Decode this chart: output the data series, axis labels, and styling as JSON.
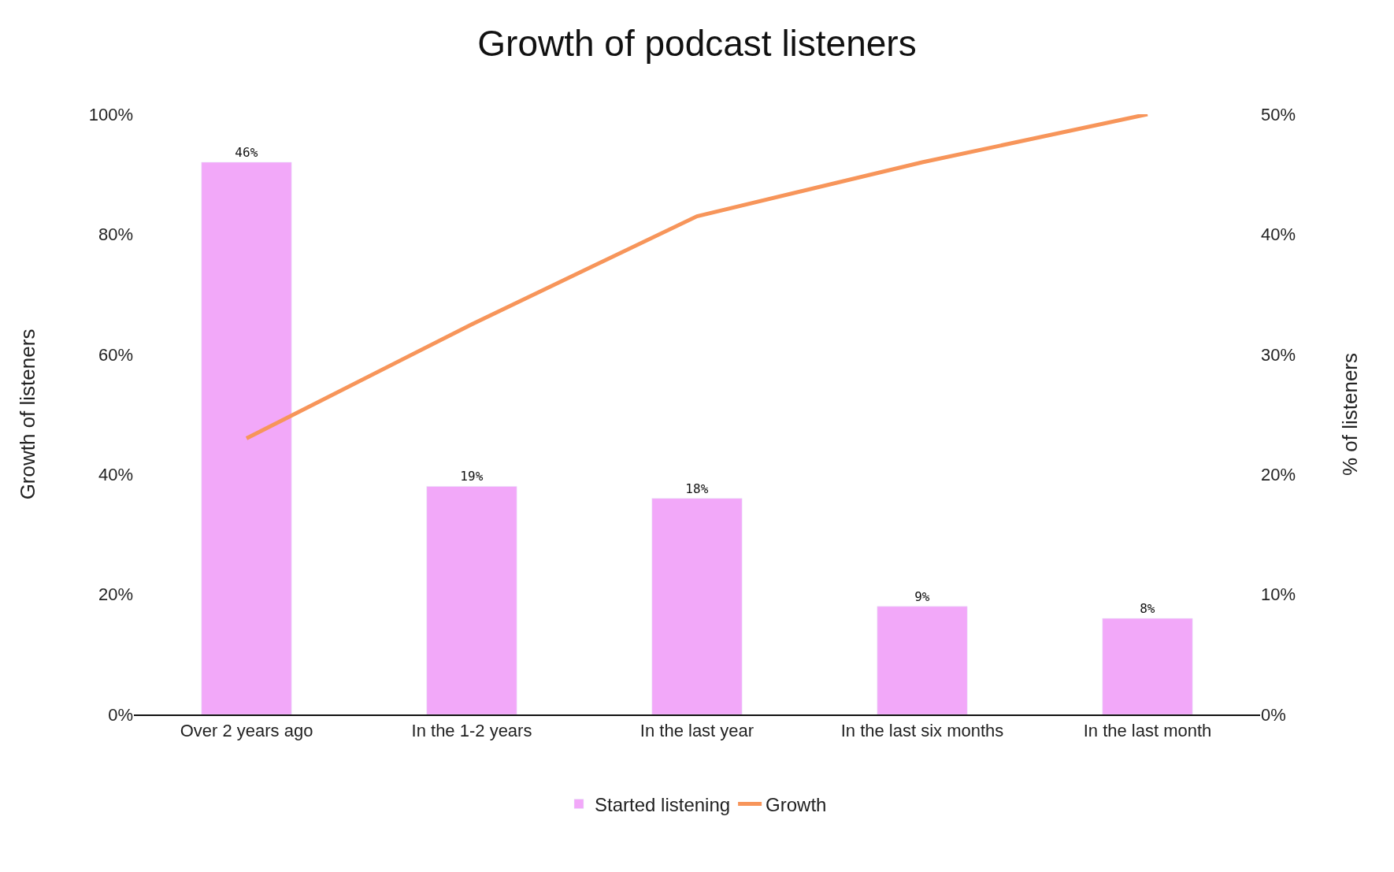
{
  "chart_data": {
    "type": "bar",
    "title": "Growth of podcast listeners",
    "ylabel": "Growth of listeners",
    "y2label": "% of listeners",
    "categories": [
      "Over 2 years ago",
      "In the 1-2 years",
      "In the last year",
      "In the last six months",
      "In the last month"
    ],
    "series": [
      {
        "name": "Started listening",
        "axis": "y2",
        "color": "#f2a8f9",
        "values": [
          46,
          19,
          18,
          9,
          8
        ],
        "value_labels": [
          "46%",
          "19%",
          "18%",
          "9%",
          "8%"
        ]
      },
      {
        "name": "Growth",
        "type": "line",
        "axis": "y",
        "color": "#f7955a",
        "values": [
          46,
          65,
          83,
          92,
          100
        ]
      }
    ],
    "ylim": [
      0,
      100
    ],
    "yticks": [
      {
        "value": 0,
        "label": "0%"
      },
      {
        "value": 20,
        "label": "20%"
      },
      {
        "value": 40,
        "label": "40%"
      },
      {
        "value": 60,
        "label": "60%"
      },
      {
        "value": 80,
        "label": "80%"
      },
      {
        "value": 100,
        "label": "100%"
      }
    ],
    "y2lim": [
      0,
      50
    ],
    "y2ticks": [
      {
        "value": 0,
        "label": "0%"
      },
      {
        "value": 10,
        "label": "10%"
      },
      {
        "value": 20,
        "label": "20%"
      },
      {
        "value": 30,
        "label": "30%"
      },
      {
        "value": 40,
        "label": "40%"
      },
      {
        "value": 50,
        "label": "50%"
      }
    ],
    "legend": "bottom",
    "marker": "none",
    "line_style": "solid"
  }
}
